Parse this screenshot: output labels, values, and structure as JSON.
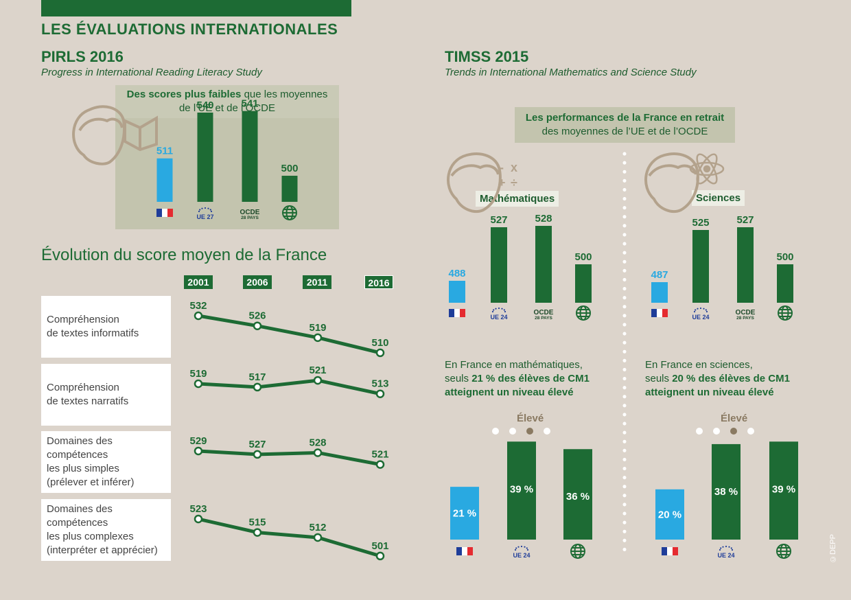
{
  "header": {
    "title": "LES ÉVALUATIONS INTERNATIONALES"
  },
  "pirls": {
    "title": "PIRLS 2016",
    "subtitle": "Progress in International Reading Literacy Study",
    "callout_bold": "Des scores plus faibles",
    "callout_rest1": " que les moyennes",
    "callout_rest2": "de l’UE et de l’OCDE"
  },
  "timss": {
    "title": "TIMSS 2015",
    "subtitle": "Trends in International Mathematics and Science Study",
    "callout_bold": "Les performances de la France en retrait",
    "callout_rest": "des moyennes de l’UE et de l’OCDE",
    "math_label": "Mathématiques",
    "sci_label": "Sciences",
    "math_para_1": "En France en mathématiques,",
    "math_para_2a": "seuls ",
    "math_para_2b": "21 % des élèves de CM1",
    "math_para_3": "atteignent un niveau élevé",
    "sci_para_1": "En France en sciences,",
    "sci_para_2a": "seuls ",
    "sci_para_2b": "20 % des élèves de CM1",
    "sci_para_3": "atteignent un niveau élevé",
    "eleve_label": "Élevé"
  },
  "evolution": {
    "title": "Évolution du score moyen de la France",
    "years": [
      "2001",
      "2006",
      "2011",
      "2016"
    ],
    "rows": [
      {
        "label": "Compréhension\nde textes informatifs",
        "values": [
          532,
          526,
          519,
          510
        ]
      },
      {
        "label": "Compréhension\nde textes narratifs",
        "values": [
          519,
          517,
          521,
          513
        ]
      },
      {
        "label": "Domaines des\ncompétences\nles plus simples\n(prélever et inférer)",
        "values": [
          529,
          527,
          528,
          521
        ]
      },
      {
        "label": "Domaines des\ncompétences\nles plus complexes\n(interpréter et apprécier)",
        "values": [
          523,
          515,
          512,
          501
        ]
      }
    ]
  },
  "badges": {
    "ue27": "UE 27",
    "ue24": "UE 24",
    "ocde": "OCDE",
    "ocde_sub": "28 PAYS"
  },
  "colors": {
    "france": "#29a9e1",
    "green": "#1d6b34",
    "beige": "#dcd4cb",
    "grey_box": "#c3c4ae",
    "tan": "#8a7a62"
  },
  "chart_data": [
    {
      "type": "bar",
      "title": "PIRLS 2016",
      "categories": [
        "France",
        "UE 27",
        "OCDE 28 pays",
        "Monde"
      ],
      "values": [
        511,
        540,
        541,
        500
      ]
    },
    {
      "type": "line",
      "title": "Évolution du score moyen de la France",
      "x": [
        "2001",
        "2006",
        "2011",
        "2016"
      ],
      "series": [
        {
          "name": "Compréhension de textes informatifs",
          "values": [
            532,
            526,
            519,
            510
          ]
        },
        {
          "name": "Compréhension de textes narratifs",
          "values": [
            519,
            517,
            521,
            513
          ]
        },
        {
          "name": "Domaines des compétences les plus simples (prélever et inférer)",
          "values": [
            529,
            527,
            528,
            521
          ]
        },
        {
          "name": "Domaines des compétences les plus complexes (interpréter et apprécier)",
          "values": [
            523,
            515,
            512,
            501
          ]
        }
      ]
    },
    {
      "type": "bar",
      "title": "Mathématiques",
      "categories": [
        "France",
        "UE 24",
        "OCDE 28 pays",
        "Monde"
      ],
      "values": [
        488,
        527,
        528,
        500
      ]
    },
    {
      "type": "bar",
      "title": "Sciences",
      "categories": [
        "France",
        "UE 24",
        "OCDE 28 pays",
        "Monde"
      ],
      "values": [
        487,
        525,
        527,
        500
      ]
    },
    {
      "type": "bar",
      "title": "Mathématiques — niveau élevé",
      "categories": [
        "France",
        "UE 24",
        "Monde"
      ],
      "values": [
        21,
        39,
        36
      ],
      "unit": "%"
    },
    {
      "type": "bar",
      "title": "Sciences — niveau élevé",
      "categories": [
        "France",
        "UE 24",
        "Monde"
      ],
      "values": [
        20,
        38,
        39
      ],
      "unit": "%"
    }
  ],
  "copyright": "©DEPP"
}
